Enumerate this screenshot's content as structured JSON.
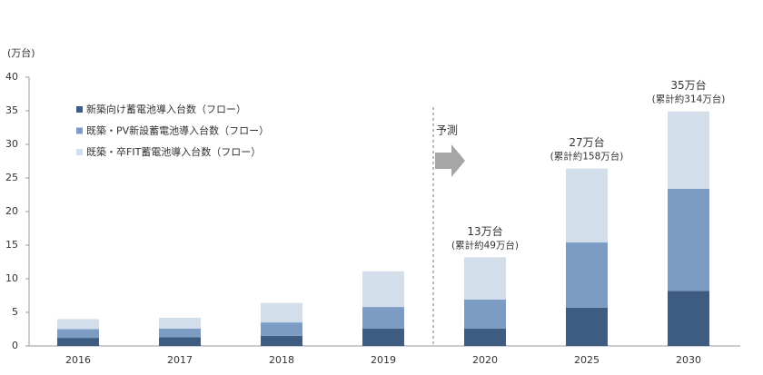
{
  "chart_data": {
    "type": "stacked_bar",
    "y_unit": "(万台)",
    "categories": [
      "2016",
      "2017",
      "2018",
      "2019",
      "2020",
      "2025",
      "2030"
    ],
    "series": [
      {
        "name": "新築向け蓄電池導入台数（フロー）",
        "color": "#3e5b82",
        "values": [
          1.2,
          1.3,
          1.5,
          2.6,
          2.6,
          5.7,
          8.2
        ]
      },
      {
        "name": "既築・PV新設蓄電池導入台数（フロー）",
        "color": "#7c9cc4",
        "values": [
          1.3,
          1.3,
          2.0,
          3.2,
          4.3,
          9.7,
          15.2
        ]
      },
      {
        "name": "既築・卒FIT蓄電池導入台数（フロー）",
        "color": "#d3deeb",
        "values": [
          1.5,
          1.6,
          2.9,
          5.3,
          6.3,
          11.0,
          11.5
        ]
      }
    ],
    "total_labels": [
      null,
      null,
      null,
      null,
      "13万台",
      "27万台",
      "35万台"
    ],
    "cumulative_labels": [
      null,
      null,
      null,
      null,
      "(累計約49万台)",
      "(累計約158万台)",
      "(累計約314万台)"
    ],
    "forecast_label": "予測",
    "ylim": [
      0,
      40
    ],
    "yticks": [
      0,
      5,
      10,
      15,
      20,
      25,
      30,
      35,
      40
    ],
    "grid": false
  }
}
